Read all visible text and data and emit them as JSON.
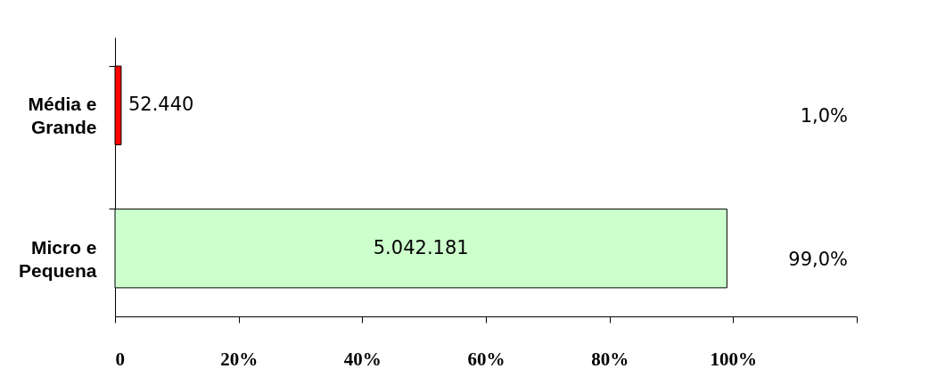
{
  "chart_data": {
    "type": "bar",
    "orientation": "horizontal",
    "categories": [
      "Média e\nGrande",
      "Micro e\nPequena"
    ],
    "values": [
      1.0,
      99.0
    ],
    "colors": [
      "#ff0000",
      "#ccffcc"
    ],
    "value_labels": [
      "1,0%",
      "99,0%"
    ],
    "annotations": [
      "52.440",
      "5.042.181"
    ],
    "xlim": [
      0,
      120
    ],
    "xticks": [
      {
        "value": 0,
        "label": "0"
      },
      {
        "value": 20,
        "label": "20%"
      },
      {
        "value": 40,
        "label": "40%"
      },
      {
        "value": 60,
        "label": "60%"
      },
      {
        "value": 80,
        "label": "80%"
      },
      {
        "value": 100,
        "label": "100%"
      },
      {
        "value": 120,
        "label": null
      }
    ],
    "grid": false
  }
}
